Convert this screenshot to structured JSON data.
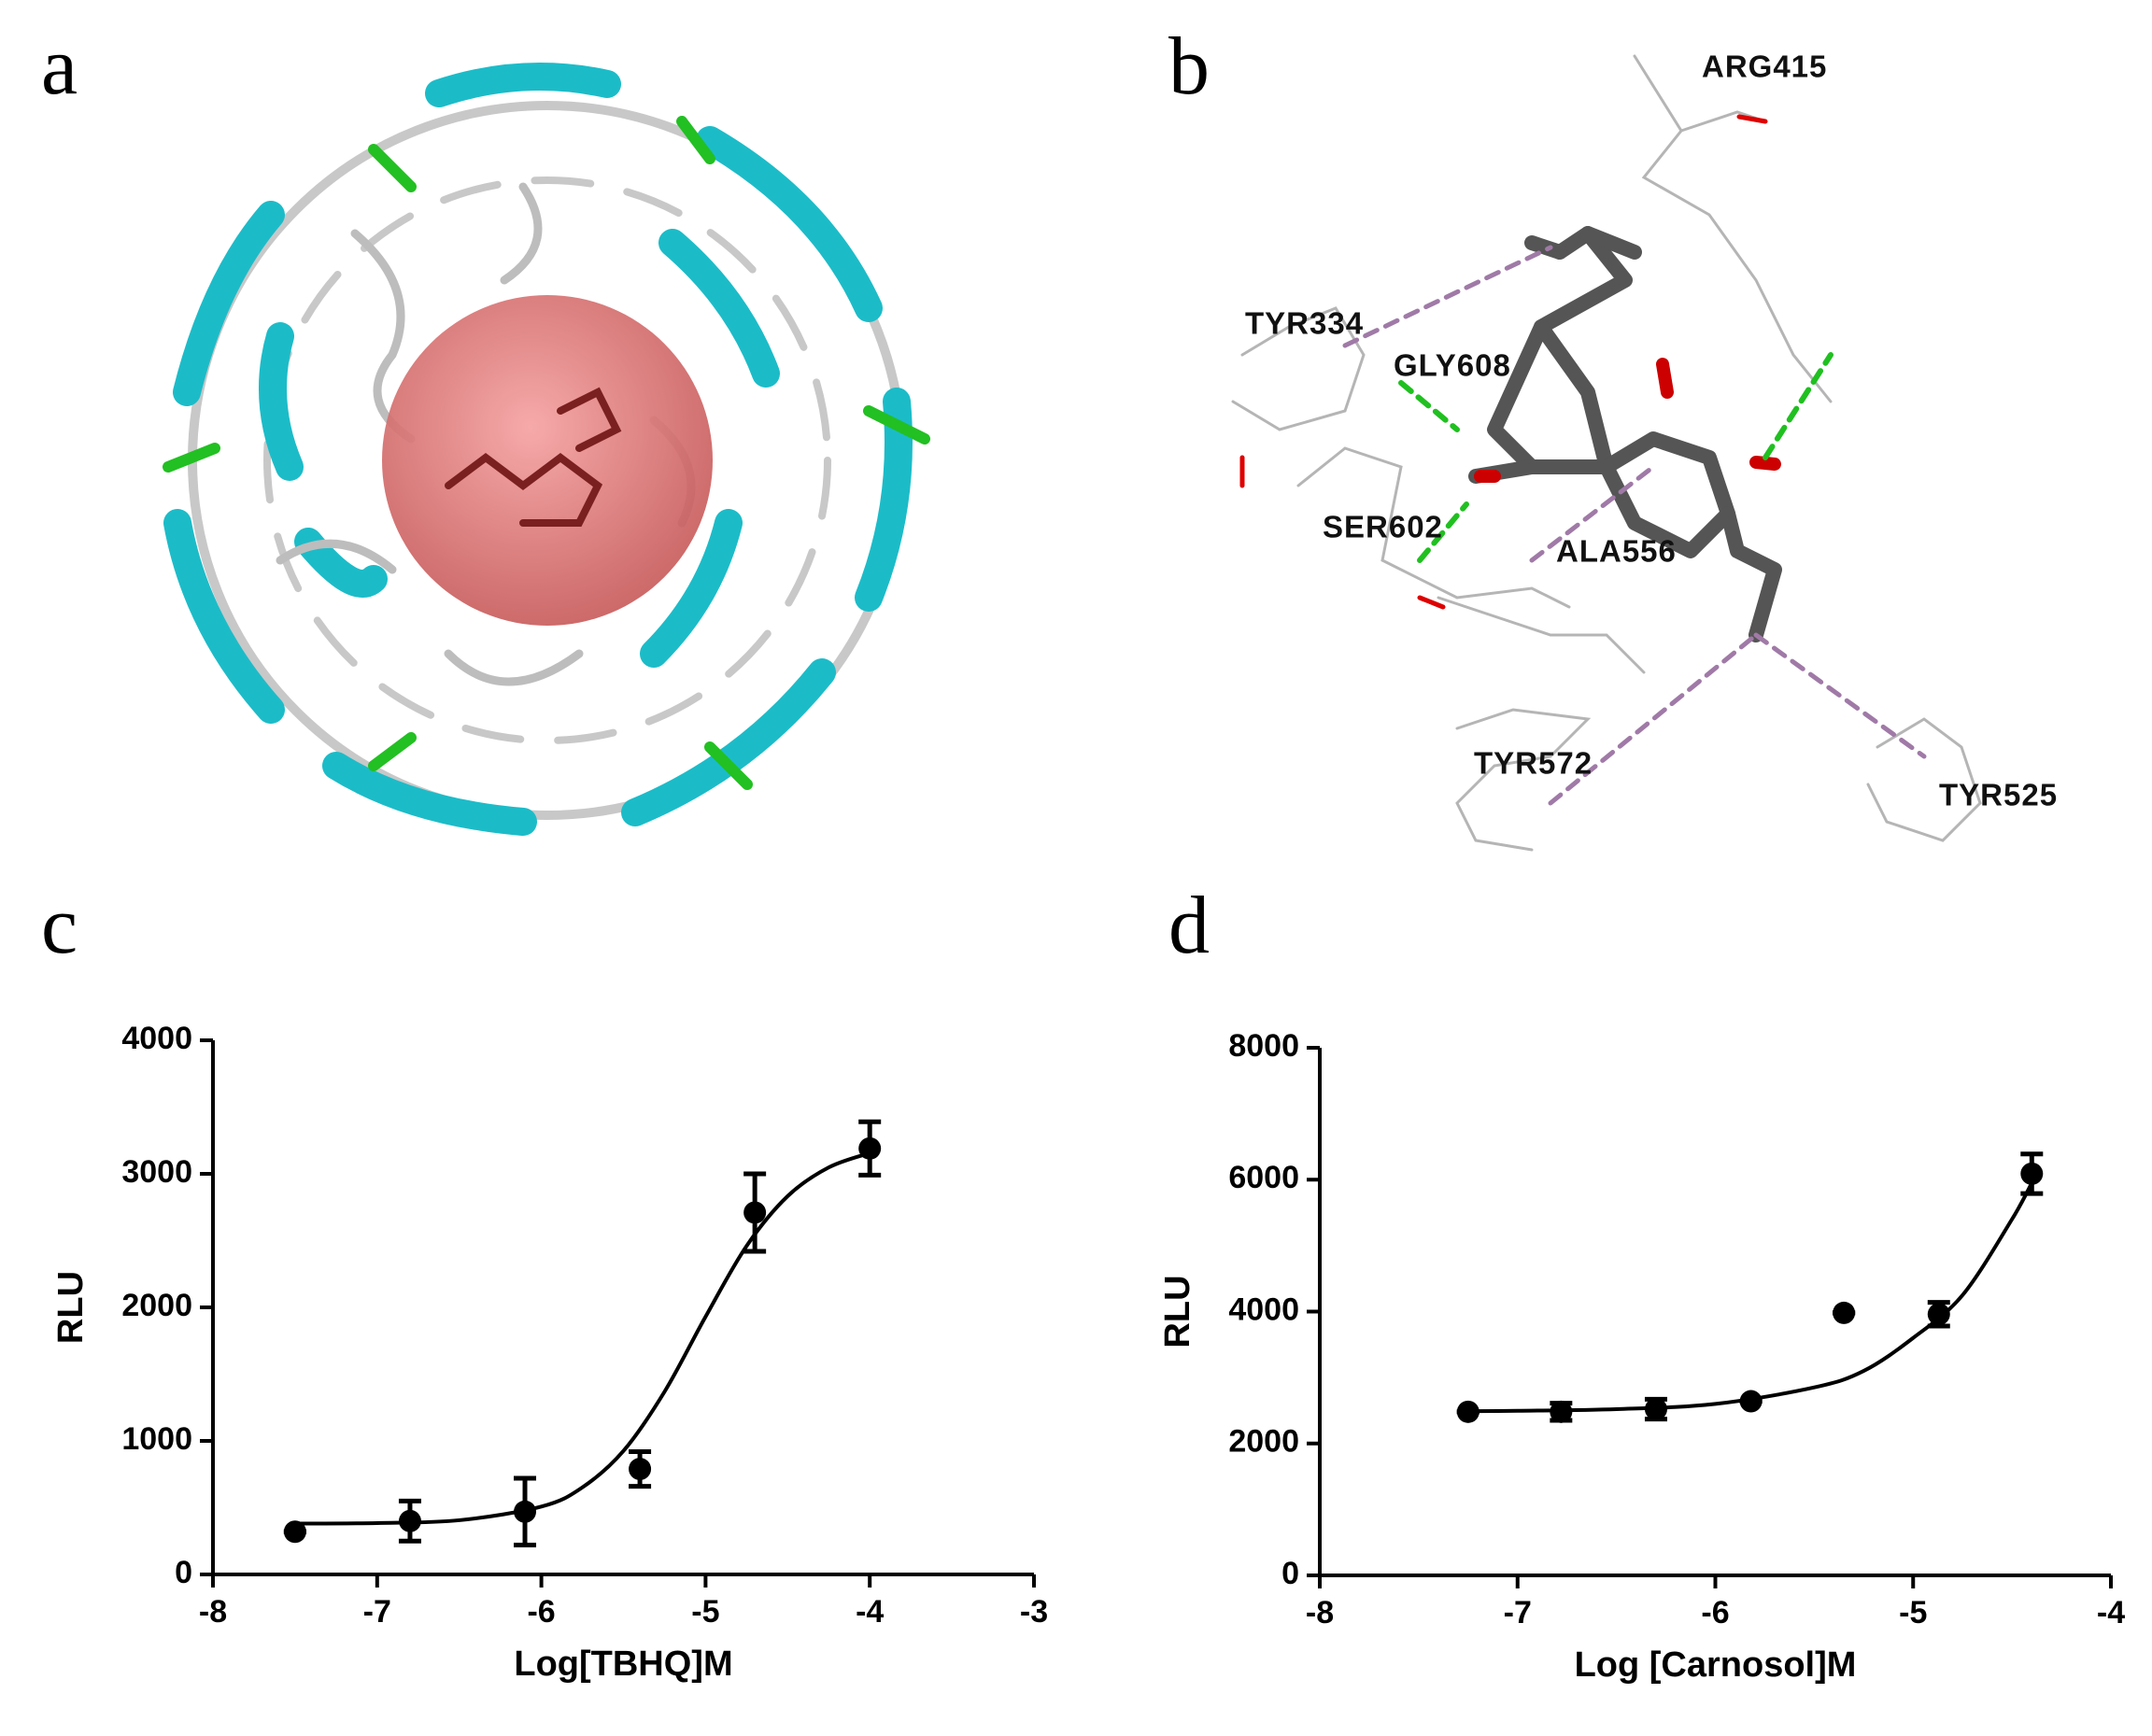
{
  "panel_labels": [
    "a",
    "b",
    "c",
    "d"
  ],
  "residues": [
    "ARG415",
    "TYR334",
    "GLY608",
    "SER602",
    "ALA556",
    "TYR572",
    "TYR525"
  ],
  "chart_data": [
    {
      "type": "scatter",
      "xlabel": "Log[TBHQ]M",
      "ylabel": "RLU",
      "color": "#000000",
      "x": [
        -7.5,
        -6.8,
        -6.1,
        -5.4,
        -4.7,
        -4.0
      ],
      "values": [
        320,
        400,
        470,
        790,
        2710,
        3190
      ],
      "errors": [
        0,
        150,
        250,
        130,
        290,
        200
      ],
      "curve": {
        "x": [
          -7.5,
          -7,
          -6.5,
          -6,
          -5.75,
          -5.5,
          -5.25,
          -5,
          -4.75,
          -4.5,
          -4.25,
          -4
        ],
        "values": [
          381,
          385,
          406,
          508,
          652,
          925,
          1368,
          1930,
          2460,
          2833,
          3048,
          3156
        ]
      },
      "xlim": [
        -8,
        -3
      ],
      "xticks": [
        -8,
        -7,
        -6,
        -5,
        -4,
        -3
      ],
      "ylim": [
        0,
        4000
      ],
      "yticks": [
        0,
        1000,
        2000,
        3000,
        4000
      ]
    },
    {
      "type": "scatter",
      "xlabel": "Log [Carnosol]M",
      "ylabel": "RLU",
      "color": "#000000",
      "x": [
        -7.25,
        -6.78,
        -6.3,
        -5.82,
        -5.35,
        -4.87,
        -4.4
      ],
      "values": [
        2480,
        2480,
        2520,
        2640,
        3980,
        3960,
        6090
      ],
      "errors": [
        0,
        130,
        150,
        0,
        0,
        180,
        300
      ],
      "curve": {
        "x": [
          -7.25,
          -7,
          -6.5,
          -6,
          -5.5,
          -5.25,
          -5,
          -4.75,
          -4.5,
          -4.4
        ],
        "values": [
          2490,
          2495,
          2520,
          2600,
          2850,
          3100,
          3600,
          4250,
          5400,
          5950
        ]
      },
      "xlim": [
        -8,
        -4
      ],
      "xticks": [
        -8,
        -7,
        -6,
        -5,
        -4
      ],
      "ylim": [
        0,
        8000
      ],
      "yticks": [
        0,
        2000,
        4000,
        6000,
        8000
      ]
    }
  ]
}
